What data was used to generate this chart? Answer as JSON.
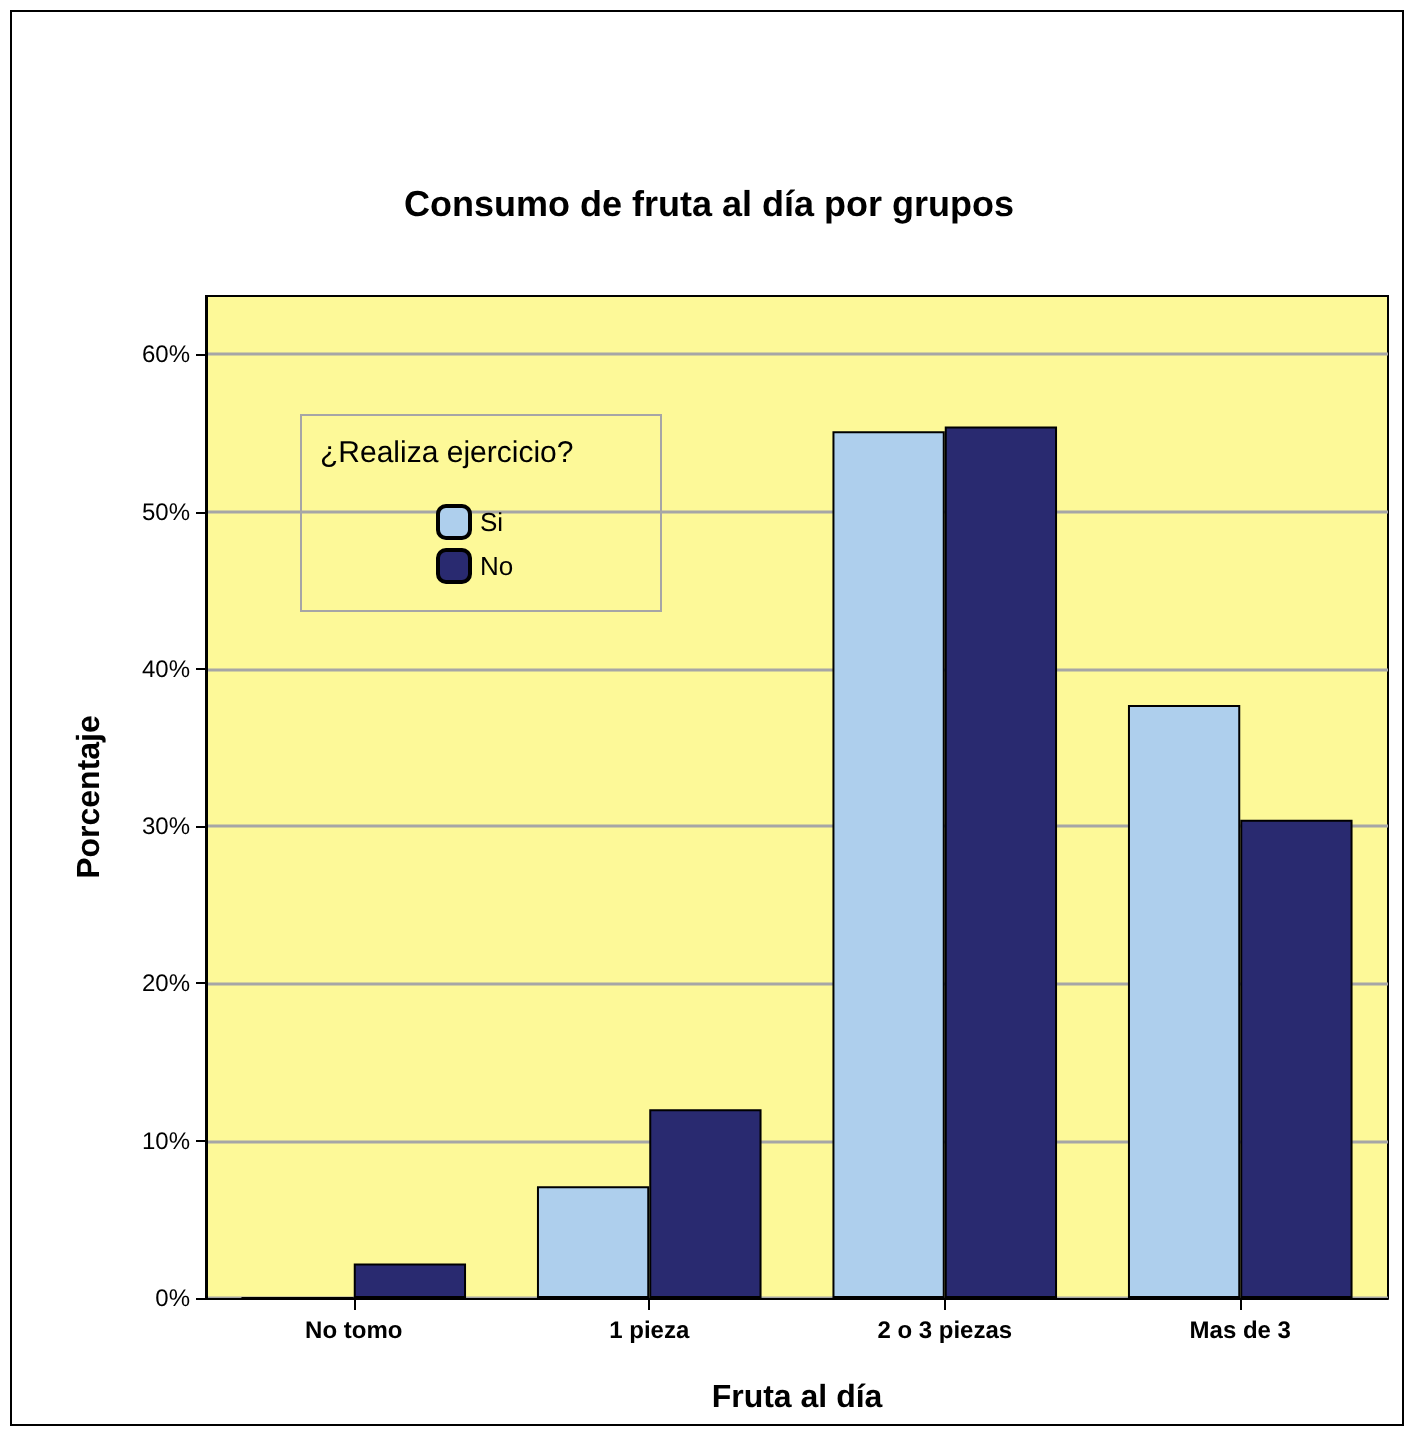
{
  "chart_data": {
    "type": "bar",
    "title": "Consumo de fruta al día por grupos",
    "xlabel": "Fruta al día",
    "ylabel": "Porcentaje",
    "legend_title": "¿Realiza ejercicio?",
    "categories": [
      "No tomo",
      "1 pieza",
      "2 o 3 piezas",
      "Mas de 3"
    ],
    "series": [
      {
        "name": "Si",
        "color": "#aecfed",
        "values": [
          0,
          7.1,
          55.1,
          37.7
        ]
      },
      {
        "name": "No",
        "color": "#292a70",
        "values": [
          2.2,
          12.0,
          55.4,
          30.4
        ]
      }
    ],
    "ylim": [
      0,
      63.7
    ],
    "yticks": [
      {
        "value": 0,
        "label": "0%"
      },
      {
        "value": 10,
        "label": "10%"
      },
      {
        "value": 20,
        "label": "20%"
      },
      {
        "value": 30,
        "label": "30%"
      },
      {
        "value": 40,
        "label": "40%"
      },
      {
        "value": 50,
        "label": "50%"
      },
      {
        "value": 60,
        "label": "60%"
      }
    ],
    "grid": "y",
    "legend": "top left"
  }
}
